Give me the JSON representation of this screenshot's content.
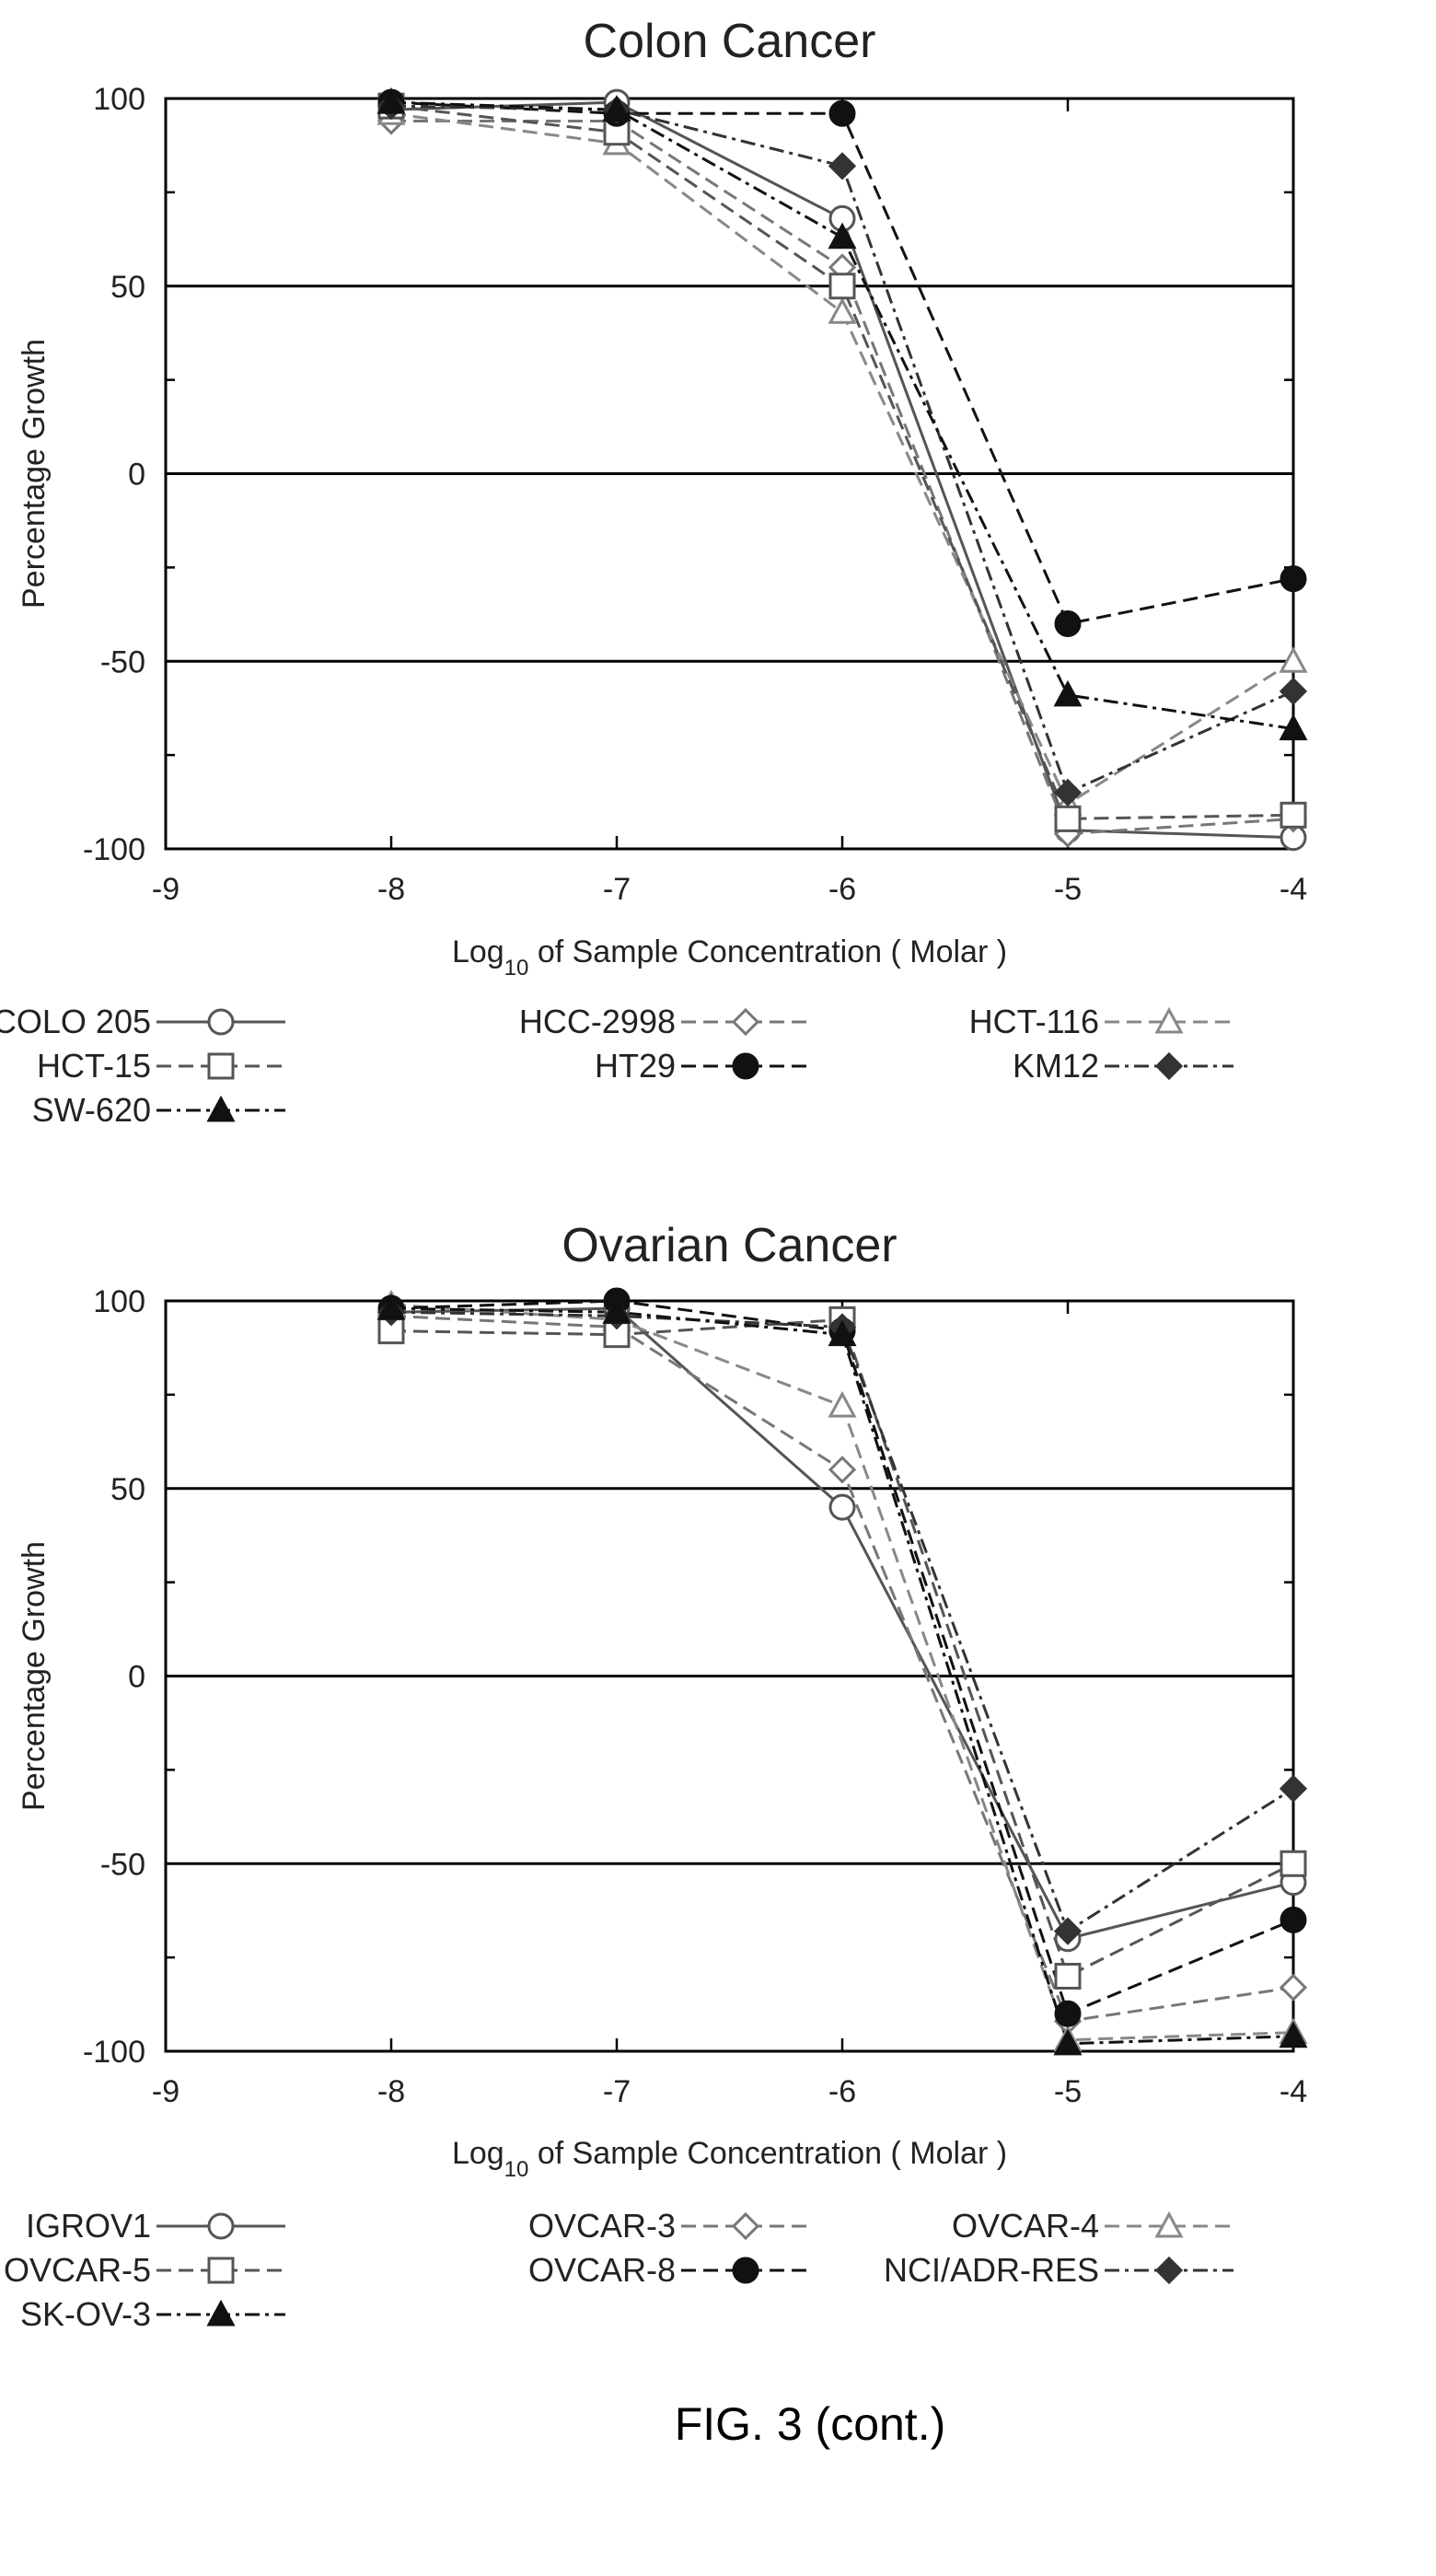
{
  "figure_label": "FIG. 3 (cont.)",
  "chart_data": [
    {
      "type": "line",
      "title": "Colon Cancer",
      "xlabel_base": "Log",
      "xlabel_sub": "10",
      "xlabel_rest": " of Sample Concentration ( Molar )",
      "ylabel": "Percentage Growth",
      "xlim": [
        -9,
        -4
      ],
      "ylim": [
        -100,
        100
      ],
      "xticks": [
        "-9",
        "-8",
        "-7",
        "-6",
        "-5",
        "-4"
      ],
      "yticks": [
        "100",
        "50",
        "0",
        "-50",
        "-100"
      ],
      "reference_lines": [
        50,
        0,
        -50
      ],
      "x": [
        -8,
        -7,
        -6,
        -5,
        -4
      ],
      "series": [
        {
          "name": "COLO 205",
          "marker": "circle-open",
          "dash": "solid",
          "color": "#555555",
          "values": [
            97,
            99,
            68,
            -95,
            -97
          ]
        },
        {
          "name": "HCC-2998",
          "marker": "diamond-open",
          "dash": "dash",
          "color": "#777777",
          "values": [
            94,
            94,
            55,
            -96,
            -92
          ]
        },
        {
          "name": "HCT-116",
          "marker": "triangle-open",
          "dash": "dash",
          "color": "#888888",
          "values": [
            96,
            88,
            43,
            -88,
            -50
          ]
        },
        {
          "name": "HCT-15",
          "marker": "square-open",
          "dash": "dash",
          "color": "#555555",
          "values": [
            98,
            91,
            50,
            -92,
            -91
          ]
        },
        {
          "name": "HT29",
          "marker": "circle-filled",
          "dash": "dash",
          "color": "#111111",
          "values": [
            99,
            96,
            96,
            -40,
            -28
          ]
        },
        {
          "name": "KM12",
          "marker": "diamond-filled",
          "dash": "dashdot",
          "color": "#333333",
          "values": [
            98,
            97,
            82,
            -85,
            -58
          ]
        },
        {
          "name": "SW-620",
          "marker": "triangle-filled",
          "dash": "dashdot",
          "color": "#111111",
          "values": [
            99,
            97,
            63,
            -59,
            -68
          ]
        }
      ]
    },
    {
      "type": "line",
      "title": "Ovarian Cancer",
      "xlabel_base": "Log",
      "xlabel_sub": "10",
      "xlabel_rest": " of Sample Concentration ( Molar )",
      "ylabel": "Percentage Growth",
      "xlim": [
        -9,
        -4
      ],
      "ylim": [
        -100,
        100
      ],
      "xticks": [
        "-9",
        "-8",
        "-7",
        "-6",
        "-5",
        "-4"
      ],
      "yticks": [
        "100",
        "50",
        "0",
        "-50",
        "-100"
      ],
      "reference_lines": [
        50,
        0,
        -50
      ],
      "x": [
        -8,
        -7,
        -6,
        -5,
        -4
      ],
      "series": [
        {
          "name": "IGROV1",
          "marker": "circle-open",
          "dash": "solid",
          "color": "#555555",
          "values": [
            97,
            98,
            45,
            -70,
            -55
          ]
        },
        {
          "name": "OVCAR-3",
          "marker": "diamond-open",
          "dash": "dash",
          "color": "#777777",
          "values": [
            96,
            93,
            55,
            -92,
            -83
          ]
        },
        {
          "name": "OVCAR-4",
          "marker": "triangle-open",
          "dash": "dash",
          "color": "#888888",
          "values": [
            99,
            95,
            72,
            -97,
            -95
          ]
        },
        {
          "name": "OVCAR-5",
          "marker": "square-open",
          "dash": "dash",
          "color": "#555555",
          "values": [
            92,
            91,
            95,
            -80,
            -50
          ]
        },
        {
          "name": "OVCAR-8",
          "marker": "circle-filled",
          "dash": "dash",
          "color": "#111111",
          "values": [
            98,
            100,
            92,
            -90,
            -65
          ]
        },
        {
          "name": "NCI/ADR-RES",
          "marker": "diamond-filled",
          "dash": "dashdot",
          "color": "#333333",
          "values": [
            97,
            96,
            93,
            -68,
            -30
          ]
        },
        {
          "name": "SK-OV-3",
          "marker": "triangle-filled",
          "dash": "dashdot",
          "color": "#111111",
          "values": [
            98,
            97,
            91,
            -98,
            -96
          ]
        }
      ]
    }
  ]
}
